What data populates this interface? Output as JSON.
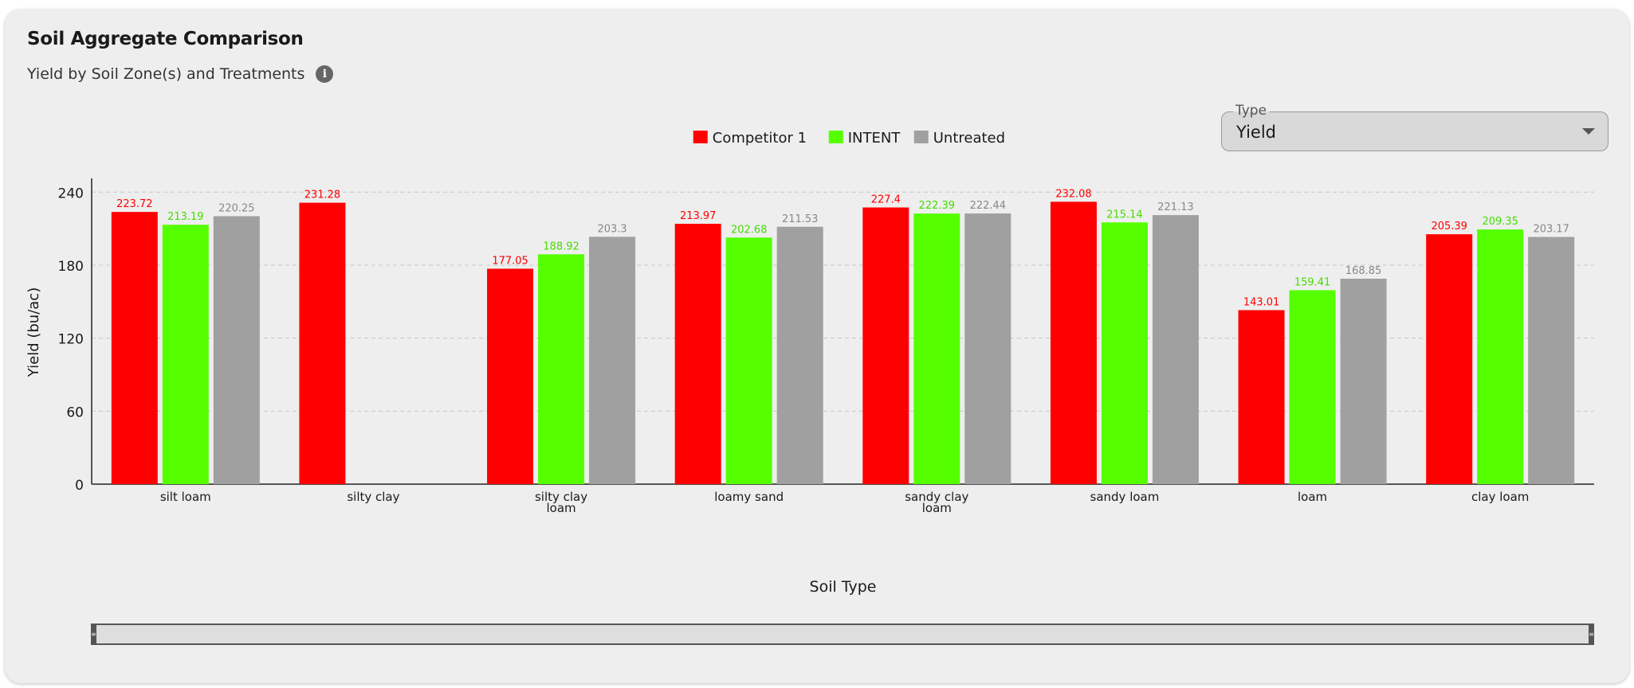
{
  "header": {
    "title": "Soil Aggregate Comparison",
    "subtitle": "Yield by Soil Zone(s) and Treatments"
  },
  "type_select": {
    "label": "Type",
    "value": "Yield"
  },
  "chart_data": {
    "type": "bar",
    "xlabel": "Soil Type",
    "ylabel": "Yield (bu/ac)",
    "ylim": [
      0,
      250
    ],
    "yticks": [
      0,
      60,
      120,
      180,
      240
    ],
    "grid": true,
    "legend_position": "top-center",
    "categories": [
      [
        "silt loam"
      ],
      [
        "silty clay"
      ],
      [
        "silty clay",
        "loam"
      ],
      [
        "loamy sand"
      ],
      [
        "sandy clay",
        "loam"
      ],
      [
        "sandy loam"
      ],
      [
        "loam"
      ],
      [
        "clay loam"
      ]
    ],
    "series": [
      {
        "name": "Competitor 1",
        "color": "#ff0000",
        "values": [
          223.72,
          231.28,
          177.05,
          213.97,
          227.4,
          232.08,
          143.01,
          205.39
        ],
        "labels": [
          "223.72",
          "231.28",
          "177.05",
          "213.97",
          "227.4",
          "232.08",
          "143.01",
          "205.39"
        ]
      },
      {
        "name": "INTENT",
        "color": "#55ff00",
        "values": [
          213.19,
          null,
          188.92,
          202.68,
          222.39,
          215.14,
          159.41,
          209.35
        ],
        "labels": [
          "213.19",
          "",
          "188.92",
          "202.68",
          "222.39",
          "215.14",
          "159.41",
          "209.35"
        ]
      },
      {
        "name": "Untreated",
        "color": "#a0a0a0",
        "values": [
          220.25,
          null,
          203.3,
          211.53,
          222.44,
          221.13,
          168.85,
          203.17
        ],
        "labels": [
          "220.25",
          "",
          "203.3",
          "211.53",
          "222.44",
          "221.13",
          "168.85",
          "203.17"
        ]
      }
    ]
  }
}
